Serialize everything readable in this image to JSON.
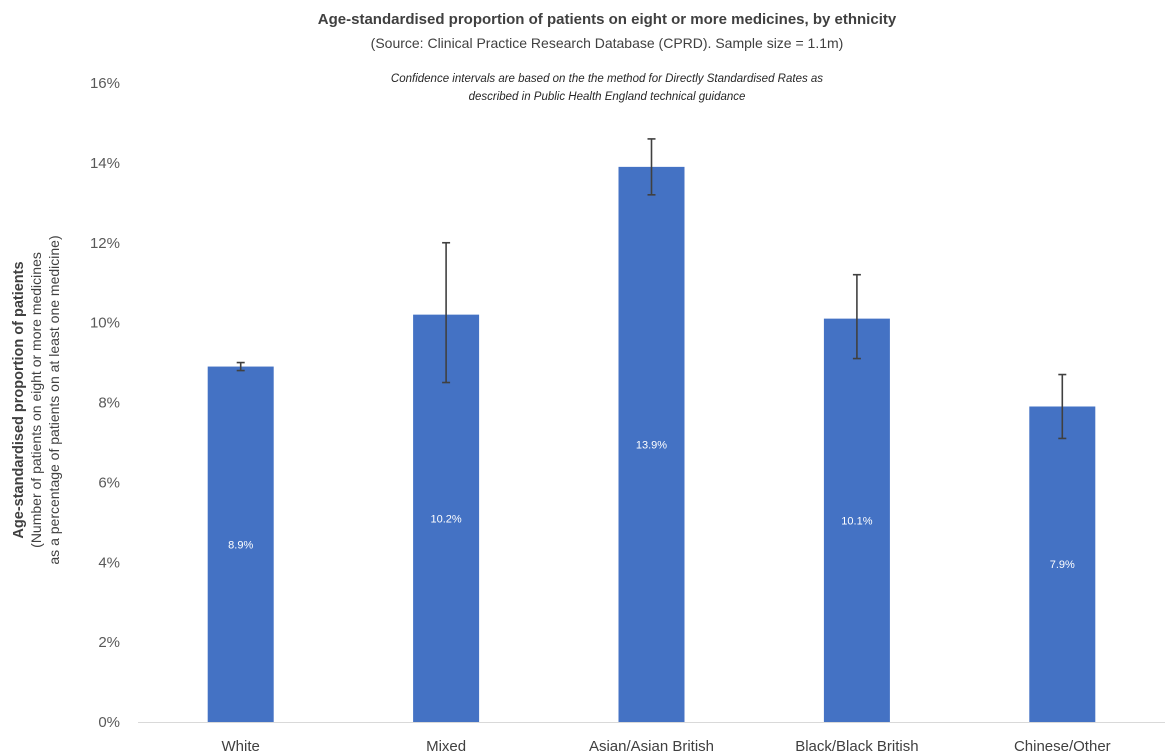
{
  "chart_data": {
    "type": "bar",
    "title": "Age-standardised proportion of patients on eight or more medicines, by ethnicity",
    "subtitle": "(Source: Clinical Practice Research Database (CPRD). Sample size = 1.1m)",
    "note_lines": [
      "Confidence intervals are based on the the method for Directly Standardised Rates as",
      "described in Public Health England technical guidance"
    ],
    "ylabel_main": "Age-standardised proportion of patients",
    "ylabel_sub_lines": [
      "(Number of patients on eight or more medicines",
      "as a percentage of patients on at least one medicine)"
    ],
    "categories": [
      "White",
      "Mixed",
      "Asian/Asian British",
      "Black/Black British",
      "Chinese/Other"
    ],
    "values": [
      8.9,
      10.2,
      13.9,
      10.1,
      7.9
    ],
    "data_labels": [
      "8.9%",
      "10.2%",
      "13.9%",
      "10.1%",
      "7.9%"
    ],
    "error_low": [
      8.8,
      8.5,
      13.2,
      9.1,
      7.1
    ],
    "error_high": [
      9.0,
      12.0,
      14.6,
      11.2,
      8.7
    ],
    "ylim": [
      0,
      16
    ],
    "yticks": [
      0,
      2,
      4,
      6,
      8,
      10,
      12,
      14,
      16
    ],
    "ytick_labels": [
      "0%",
      "2%",
      "4%",
      "6%",
      "8%",
      "10%",
      "12%",
      "14%",
      "16%"
    ],
    "grid": false,
    "colors": {
      "bar": "#4472C4",
      "error_bar": "#404040"
    }
  }
}
